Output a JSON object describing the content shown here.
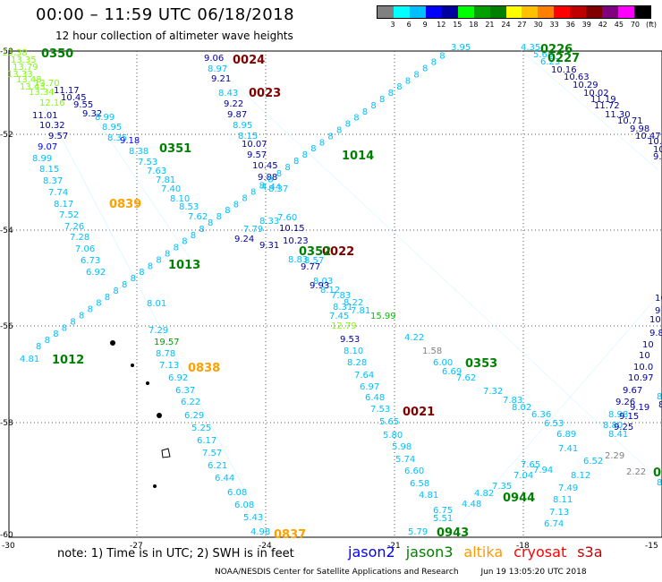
{
  "title": "00:00 – 11:59 UTC 06/18/2018",
  "subtitle": "12 hour collection of altimeter wave heights",
  "legend": {
    "colors": [
      "#808080",
      "#00ffff",
      "#00bfff",
      "#0000ff",
      "#0000a0",
      "#00ff00",
      "#00a000",
      "#008000",
      "#ffff00",
      "#ffc000",
      "#ff8000",
      "#ff0000",
      "#c00000",
      "#800000",
      "#800080",
      "#ff00ff",
      "#000000"
    ],
    "labels": [
      "3",
      "6",
      "9",
      "12",
      "15",
      "18",
      "21",
      "24",
      "27",
      "30",
      "33",
      "36",
      "39",
      "42",
      "45",
      "70",
      "(ft)"
    ]
  },
  "axes": {
    "lat_labels": [
      "-50",
      "-52",
      "-54",
      "-56",
      "-58",
      "-60"
    ],
    "lon_labels": [
      "-30",
      "-27",
      "-24",
      "-21",
      "-18",
      "-15"
    ]
  },
  "time_labels": [
    {
      "t": "0350",
      "c": "#008000"
    },
    {
      "t": "0024",
      "c": "#800000"
    },
    {
      "t": "0023",
      "c": "#800000"
    },
    {
      "t": "0351",
      "c": "#008000"
    },
    {
      "t": "0839",
      "c": "#ffa000"
    },
    {
      "t": "0226",
      "c": "#008000"
    },
    {
      "t": "0227",
      "c": "#008000"
    },
    {
      "t": "1014",
      "c": "#008000"
    },
    {
      "t": "0022",
      "c": "#800000"
    },
    {
      "t": "0352",
      "c": "#008000"
    },
    {
      "t": "1013",
      "c": "#008000"
    },
    {
      "t": "1012",
      "c": "#008000"
    },
    {
      "t": "0838",
      "c": "#ffa000"
    },
    {
      "t": "0353",
      "c": "#008000"
    },
    {
      "t": "0021",
      "c": "#800000"
    },
    {
      "t": "0944",
      "c": "#008000"
    },
    {
      "t": "0943",
      "c": "#008000"
    },
    {
      "t": "0837",
      "c": "#ffa000"
    },
    {
      "t": "0",
      "c": "#008000"
    }
  ],
  "points": [
    {
      "v": "13.38",
      "c": "#7fff00"
    },
    {
      "v": "13.35",
      "c": "#7fff00"
    },
    {
      "v": "13.79",
      "c": "#7fff00"
    },
    {
      "v": "13.33",
      "c": "#7fff00"
    },
    {
      "v": "13.48",
      "c": "#7fff00"
    },
    {
      "v": "13.43",
      "c": "#7fff00"
    },
    {
      "v": "13.70",
      "c": "#7fff00"
    },
    {
      "v": "13.34",
      "c": "#7fff00"
    },
    {
      "v": "12.16",
      "c": "#7fff00"
    },
    {
      "v": "11.17",
      "c": "#0000a0"
    },
    {
      "v": "10.45",
      "c": "#0000a0"
    },
    {
      "v": "9.55",
      "c": "#0000a0"
    },
    {
      "v": "9.32",
      "c": "#0000a0"
    },
    {
      "v": "11.01",
      "c": "#0000a0"
    },
    {
      "v": "10.32",
      "c": "#0000a0"
    },
    {
      "v": "9.57",
      "c": "#0000a0"
    },
    {
      "v": "9.07",
      "c": "#0000ff"
    },
    {
      "v": "8.99",
      "c": "#00bfff"
    },
    {
      "v": "8.15",
      "c": "#00bfff"
    },
    {
      "v": "8.37",
      "c": "#00bfff"
    },
    {
      "v": "7.74",
      "c": "#00bfff"
    },
    {
      "v": "8.17",
      "c": "#00bfff"
    },
    {
      "v": "7.52",
      "c": "#00bfff"
    },
    {
      "v": "7.26",
      "c": "#00bfff"
    },
    {
      "v": "7.28",
      "c": "#00bfff"
    },
    {
      "v": "7.06",
      "c": "#00bfff"
    },
    {
      "v": "6.73",
      "c": "#00bfff"
    },
    {
      "v": "6.92",
      "c": "#00bfff"
    },
    {
      "v": "8.99",
      "c": "#00bfff"
    },
    {
      "v": "8.95",
      "c": "#00bfff"
    },
    {
      "v": "8.35",
      "c": "#00bfff"
    },
    {
      "v": "9.18",
      "c": "#0000ff"
    },
    {
      "v": "8.38",
      "c": "#00bfff"
    },
    {
      "v": "7.53",
      "c": "#00bfff"
    },
    {
      "v": "7.63",
      "c": "#00bfff"
    },
    {
      "v": "7.81",
      "c": "#00bfff"
    },
    {
      "v": "7.40",
      "c": "#00bfff"
    },
    {
      "v": "8.10",
      "c": "#00bfff"
    },
    {
      "v": "8.53",
      "c": "#00bfff"
    },
    {
      "v": "7.62",
      "c": "#00bfff"
    },
    {
      "v": "9.06",
      "c": "#0000a0"
    },
    {
      "v": "8.97",
      "c": "#00bfff"
    },
    {
      "v": "9.21",
      "c": "#0000a0"
    },
    {
      "v": "8.43",
      "c": "#00bfff"
    },
    {
      "v": "9.22",
      "c": "#0000a0"
    },
    {
      "v": "9.87",
      "c": "#0000a0"
    },
    {
      "v": "8.95",
      "c": "#00bfff"
    },
    {
      "v": "8.15",
      "c": "#00bfff"
    },
    {
      "v": "10.07",
      "c": "#0000a0"
    },
    {
      "v": "9.57",
      "c": "#0000a0"
    },
    {
      "v": "10.45",
      "c": "#0000a0"
    },
    {
      "v": "9.88",
      "c": "#0000a0"
    },
    {
      "v": "8.37",
      "c": "#00bfff"
    },
    {
      "v": "7.60",
      "c": "#00bfff"
    },
    {
      "v": "10.15",
      "c": "#0000a0"
    },
    {
      "v": "10.23",
      "c": "#0000a0"
    },
    {
      "v": "9.24",
      "c": "#0000a0"
    },
    {
      "v": "9.31",
      "c": "#0000a0"
    },
    {
      "v": "7.79",
      "c": "#00bfff"
    },
    {
      "v": "8.33",
      "c": "#00bfff"
    },
    {
      "v": "8.83",
      "c": "#00bfff"
    },
    {
      "v": "8.57",
      "c": "#00bfff"
    },
    {
      "v": "9.77",
      "c": "#0000a0"
    },
    {
      "v": "8.03",
      "c": "#00bfff"
    },
    {
      "v": "9.93",
      "c": "#0000a0"
    },
    {
      "v": "8.12",
      "c": "#00bfff"
    },
    {
      "v": "7.83",
      "c": "#00bfff"
    },
    {
      "v": "8.31",
      "c": "#00bfff"
    },
    {
      "v": "8.22",
      "c": "#00bfff"
    },
    {
      "v": "7.45",
      "c": "#00bfff"
    },
    {
      "v": "7.81",
      "c": "#00bfff"
    },
    {
      "v": "15.99",
      "c": "#00c000"
    },
    {
      "v": "12.79",
      "c": "#7fff00"
    },
    {
      "v": "9.53",
      "c": "#0000a0"
    },
    {
      "v": "8.10",
      "c": "#00bfff"
    },
    {
      "v": "8.28",
      "c": "#00bfff"
    },
    {
      "v": "7.64",
      "c": "#00bfff"
    },
    {
      "v": "6.97",
      "c": "#00bfff"
    },
    {
      "v": "6.48",
      "c": "#00bfff"
    },
    {
      "v": "7.53",
      "c": "#00bfff"
    },
    {
      "v": "5.65",
      "c": "#00bfff"
    },
    {
      "v": "5.80",
      "c": "#00bfff"
    },
    {
      "v": "5.98",
      "c": "#00bfff"
    },
    {
      "v": "5.74",
      "c": "#00bfff"
    },
    {
      "v": "6.60",
      "c": "#00bfff"
    },
    {
      "v": "6.58",
      "c": "#00bfff"
    },
    {
      "v": "4.81",
      "c": "#00bfff"
    },
    {
      "v": "6.75",
      "c": "#00bfff"
    },
    {
      "v": "5.51",
      "c": "#00bfff"
    },
    {
      "v": "5.79",
      "c": "#00bfff"
    },
    {
      "v": "4.48",
      "c": "#00bfff"
    },
    {
      "v": "4.82",
      "c": "#00bfff"
    },
    {
      "v": "4.22",
      "c": "#00bfff"
    },
    {
      "v": "1.58",
      "c": "#808080"
    },
    {
      "v": "6.00",
      "c": "#00bfff"
    },
    {
      "v": "6.69",
      "c": "#00bfff"
    },
    {
      "v": "7.62",
      "c": "#00bfff"
    },
    {
      "v": "7.32",
      "c": "#00bfff"
    },
    {
      "v": "7.83",
      "c": "#00bfff"
    },
    {
      "v": "8.02",
      "c": "#00bfff"
    },
    {
      "v": "6.36",
      "c": "#00bfff"
    },
    {
      "v": "6.53",
      "c": "#00bfff"
    },
    {
      "v": "6.89",
      "c": "#00bfff"
    },
    {
      "v": "7.41",
      "c": "#00bfff"
    },
    {
      "v": "7.65",
      "c": "#00bfff"
    },
    {
      "v": "7.94",
      "c": "#00bfff"
    },
    {
      "v": "7.04",
      "c": "#00bfff"
    },
    {
      "v": "7.35",
      "c": "#00bfff"
    },
    {
      "v": "8.12",
      "c": "#00bfff"
    },
    {
      "v": "7.49",
      "c": "#00bfff"
    },
    {
      "v": "8.11",
      "c": "#00bfff"
    },
    {
      "v": "7.13",
      "c": "#00bfff"
    },
    {
      "v": "6.74",
      "c": "#00bfff"
    },
    {
      "v": "6.52",
      "c": "#00bfff"
    },
    {
      "v": "2.29",
      "c": "#808080"
    },
    {
      "v": "2.22",
      "c": "#808080"
    },
    {
      "v": "8.07",
      "c": "#00bfff"
    },
    {
      "v": "8.01",
      "c": "#00bfff"
    },
    {
      "v": "7.29",
      "c": "#00bfff"
    },
    {
      "v": "19.57",
      "c": "#00a000"
    },
    {
      "v": "8.78",
      "c": "#00bfff"
    },
    {
      "v": "7.13",
      "c": "#00bfff"
    },
    {
      "v": "6.92",
      "c": "#00bfff"
    },
    {
      "v": "6.37",
      "c": "#00bfff"
    },
    {
      "v": "6.22",
      "c": "#00bfff"
    },
    {
      "v": "6.29",
      "c": "#00bfff"
    },
    {
      "v": "5.25",
      "c": "#00bfff"
    },
    {
      "v": "6.17",
      "c": "#00bfff"
    },
    {
      "v": "7.57",
      "c": "#00bfff"
    },
    {
      "v": "6.21",
      "c": "#00bfff"
    },
    {
      "v": "6.44",
      "c": "#00bfff"
    },
    {
      "v": "6.08",
      "c": "#00bfff"
    },
    {
      "v": "6.08",
      "c": "#00bfff"
    },
    {
      "v": "5.43",
      "c": "#00bfff"
    },
    {
      "v": "4.98",
      "c": "#00bfff"
    },
    {
      "v": "4.81",
      "c": "#00bfff"
    },
    {
      "v": "4.44",
      "c": "#00bfff"
    },
    {
      "v": "3.95",
      "c": "#00bfff"
    },
    {
      "v": "4.35",
      "c": "#00bfff"
    },
    {
      "v": "5.68",
      "c": "#00bfff"
    },
    {
      "v": "6.23",
      "c": "#00bfff"
    },
    {
      "v": "10.16",
      "c": "#0000a0"
    },
    {
      "v": "10.63",
      "c": "#0000a0"
    },
    {
      "v": "10.29",
      "c": "#0000a0"
    },
    {
      "v": "10.02",
      "c": "#0000a0"
    },
    {
      "v": "11.19",
      "c": "#0000a0"
    },
    {
      "v": "11.72",
      "c": "#0000a0"
    },
    {
      "v": "11.30",
      "c": "#0000a0"
    },
    {
      "v": "10.71",
      "c": "#0000a0"
    },
    {
      "v": "9.98",
      "c": "#0000a0"
    },
    {
      "v": "10.47",
      "c": "#0000a0"
    },
    {
      "v": "10.26",
      "c": "#0000a0"
    },
    {
      "v": "10.56",
      "c": "#0000a0"
    },
    {
      "v": "9.99",
      "c": "#0000a0"
    },
    {
      "v": "10.44",
      "c": "#0000a0"
    },
    {
      "v": "9.42",
      "c": "#0000a0"
    },
    {
      "v": "10.21",
      "c": "#0000a0"
    },
    {
      "v": "9.80",
      "c": "#0000a0"
    },
    {
      "v": "10",
      "c": "#0000a0"
    },
    {
      "v": "10",
      "c": "#0000a0"
    },
    {
      "v": "10.0",
      "c": "#0000a0"
    },
    {
      "v": "10.97",
      "c": "#0000a0"
    },
    {
      "v": "9.67",
      "c": "#0000a0"
    },
    {
      "v": "9.26",
      "c": "#0000a0"
    },
    {
      "v": "9.19",
      "c": "#0000a0"
    },
    {
      "v": "8.98",
      "c": "#00bfff"
    },
    {
      "v": "9.15",
      "c": "#0000a0"
    },
    {
      "v": "8.80",
      "c": "#00bfff"
    },
    {
      "v": "9.25",
      "c": "#0000a0"
    },
    {
      "v": "8.41",
      "c": "#00bfff"
    },
    {
      "v": "8.31",
      "c": "#00bfff"
    },
    {
      "v": "8.06",
      "c": "#0000a0"
    },
    {
      "v": "8.72",
      "c": "#00bfff"
    },
    {
      "v": "8.01",
      "c": "#0000a0"
    },
    {
      "v": "9.4",
      "c": "#0000a0"
    },
    {
      "v": "9",
      "c": "#0000a0"
    }
  ],
  "footer": {
    "note": "note:  1) Time is in UTC;  2) SWH is in feet",
    "satellites": [
      {
        "name": "jason2",
        "color": "#0000ff"
      },
      {
        "name": "jason3",
        "color": "#008000"
      },
      {
        "name": "altika",
        "color": "#ff9900"
      },
      {
        "name": "cryosat",
        "color": "#ff0000"
      },
      {
        "name": "s3a",
        "color": "#c00000"
      }
    ],
    "credit": "NOAA/NESDIS Center for Satellite Applications and Research",
    "timestamp": "Jun 19 13:05:20 UTC 2018"
  }
}
